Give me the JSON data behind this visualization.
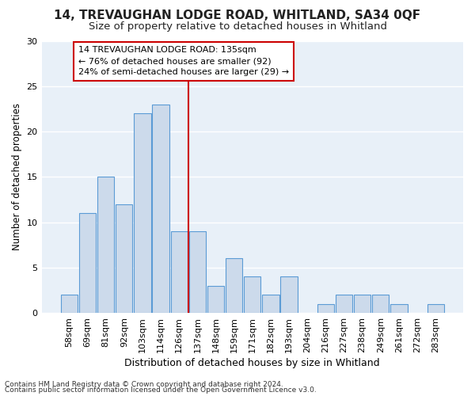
{
  "title1": "14, TREVAUGHAN LODGE ROAD, WHITLAND, SA34 0QF",
  "title2": "Size of property relative to detached houses in Whitland",
  "xlabel": "Distribution of detached houses by size in Whitland",
  "ylabel": "Number of detached properties",
  "categories": [
    "58sqm",
    "69sqm",
    "81sqm",
    "92sqm",
    "103sqm",
    "114sqm",
    "126sqm",
    "137sqm",
    "148sqm",
    "159sqm",
    "171sqm",
    "182sqm",
    "193sqm",
    "204sqm",
    "216sqm",
    "227sqm",
    "238sqm",
    "249sqm",
    "261sqm",
    "272sqm",
    "283sqm"
  ],
  "values": [
    2,
    11,
    15,
    12,
    22,
    23,
    9,
    9,
    3,
    6,
    4,
    2,
    4,
    0,
    1,
    2,
    2,
    2,
    1,
    0,
    1
  ],
  "highlight_index": 7,
  "bar_color": "#ccdaeb",
  "bar_edge_color": "#5b9bd5",
  "highlight_line_color": "#cc0000",
  "annotation_text": "14 TREVAUGHAN LODGE ROAD: 135sqm\n← 76% of detached houses are smaller (92)\n24% of semi-detached houses are larger (29) →",
  "annotation_box_color": "#ffffff",
  "annotation_box_edge_color": "#cc0000",
  "footer1": "Contains HM Land Registry data © Crown copyright and database right 2024.",
  "footer2": "Contains public sector information licensed under the Open Government Licence v3.0.",
  "ylim": [
    0,
    30
  ],
  "yticks": [
    0,
    5,
    10,
    15,
    20,
    25,
    30
  ],
  "background_color": "#ffffff",
  "plot_background_color": "#e8f0f8",
  "grid_color": "#ffffff",
  "title1_fontsize": 11,
  "title2_fontsize": 9.5,
  "xlabel_fontsize": 9,
  "ylabel_fontsize": 8.5,
  "tick_fontsize": 8,
  "annotation_fontsize": 8,
  "footer_fontsize": 6.5
}
